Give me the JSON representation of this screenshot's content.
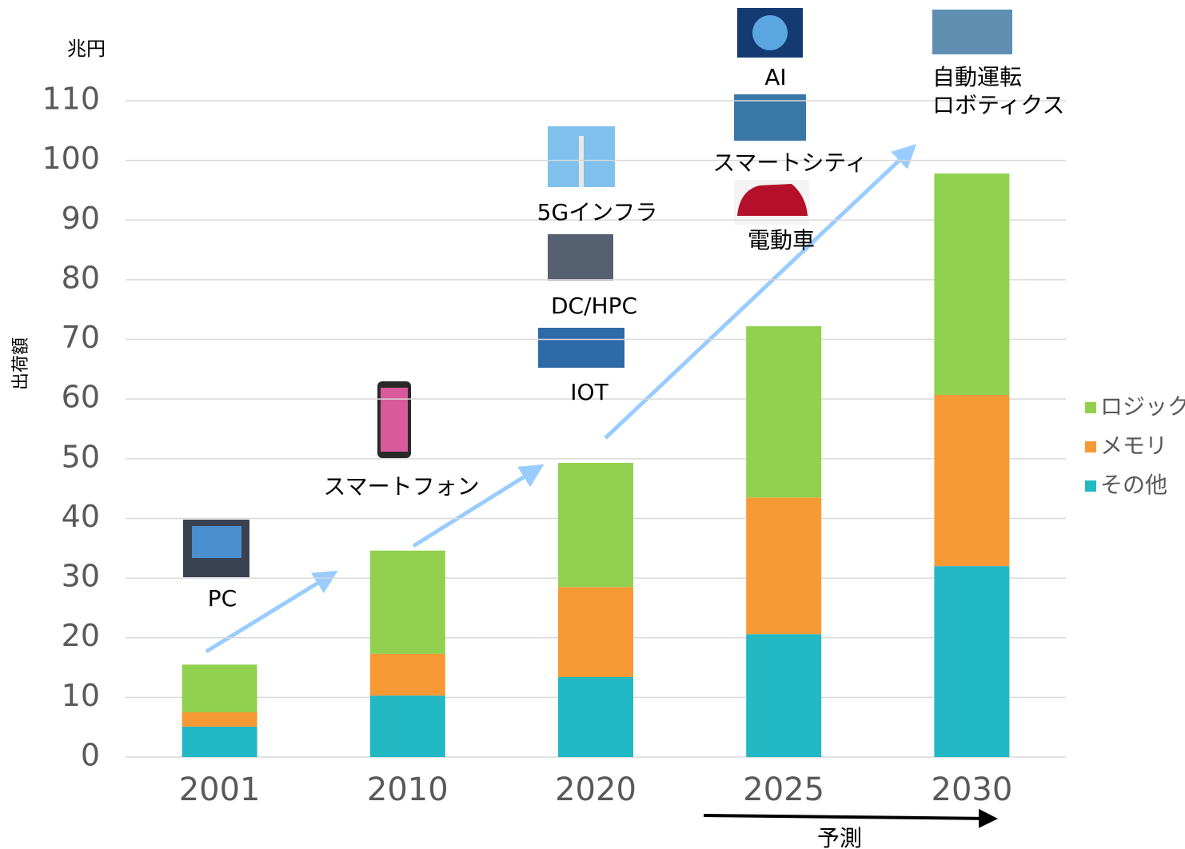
{
  "chart_data": {
    "type": "bar",
    "stacked": true,
    "y_unit": "兆円",
    "ylabel": "出荷額",
    "categories": [
      "2001",
      "2010",
      "2020",
      "2025",
      "2030"
    ],
    "series": [
      {
        "name": "その他",
        "color": "#22b8c4",
        "values": [
          5.1,
          10.3,
          13.4,
          20.6,
          32.0
        ]
      },
      {
        "name": "メモリ",
        "color": "#f79a35",
        "values": [
          2.4,
          7.0,
          15.1,
          22.9,
          28.7
        ]
      },
      {
        "name": "ロジック",
        "color": "#92d050",
        "values": [
          8.0,
          17.3,
          20.8,
          28.7,
          37.1
        ]
      }
    ],
    "ylim": [
      0,
      110
    ],
    "yticks": [
      0,
      10,
      20,
      30,
      40,
      50,
      60,
      70,
      80,
      90,
      100,
      110
    ],
    "grid": true,
    "legend": "right",
    "annotations": [
      "PC",
      "スマートフォン",
      "5Gインフラ",
      "DC/HPC",
      "IOT",
      "AI",
      "スマートシティ",
      "電動車",
      "自動運転",
      "ロボティクス",
      "予測"
    ]
  }
}
